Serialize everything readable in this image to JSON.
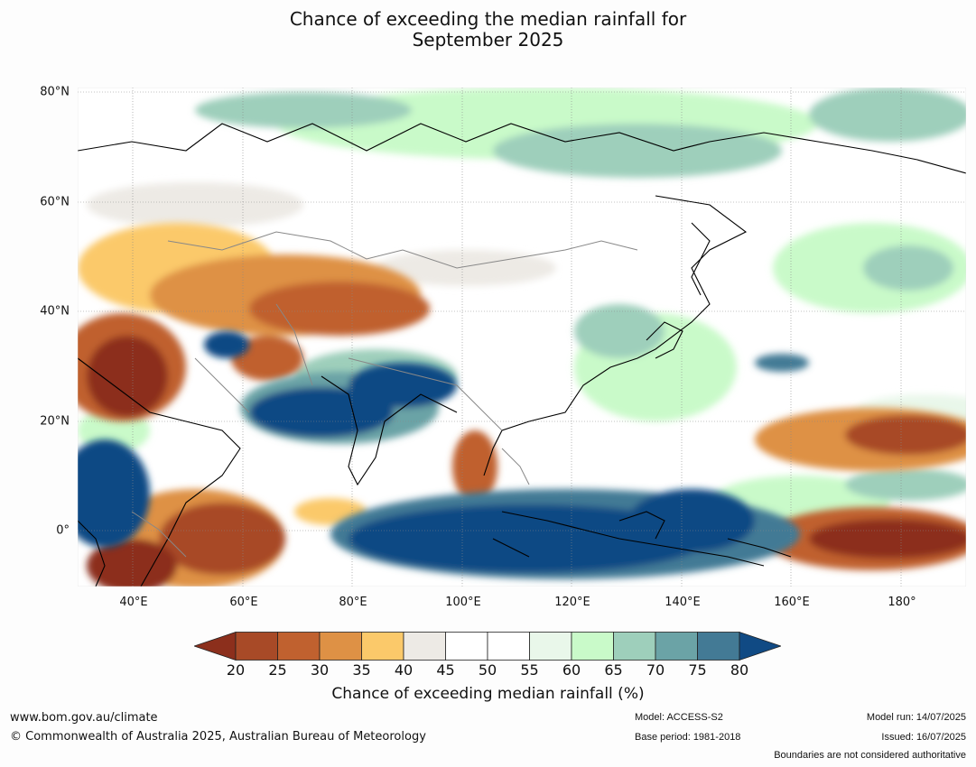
{
  "title": {
    "line1": "Chance of exceeding the median rainfall for",
    "line2": "September 2025"
  },
  "map": {
    "lat_labels": [
      "80°N",
      "60°N",
      "40°N",
      "20°N",
      "0°"
    ],
    "lon_labels": [
      "40°E",
      "60°E",
      "80°E",
      "100°E",
      "120°E",
      "140°E",
      "160°E",
      "180°"
    ],
    "lat_range": [
      -10,
      81
    ],
    "lon_range": [
      30,
      192
    ]
  },
  "colorbar": {
    "ticks": [
      "20",
      "25",
      "30",
      "35",
      "40",
      "45",
      "50",
      "55",
      "60",
      "65",
      "70",
      "75",
      "80"
    ],
    "colors": [
      "#8c2f1c",
      "#a84a27",
      "#c0612f",
      "#de9145",
      "#fbc96a",
      "#edeae5",
      "#ffffff",
      "#ffffff",
      "#e9f7ea",
      "#c9fac9",
      "#9ecfbb",
      "#6ba3a6",
      "#437a95",
      "#104a84"
    ],
    "label": "Chance of exceeding median rainfall (%)"
  },
  "footer": {
    "website": "www.bom.gov.au/climate",
    "copyright": "© Commonwealth of Australia 2025, Australian Bureau of Meteorology",
    "model": "Model: ACCESS-S2",
    "base_period": "Base period: 1981-2018",
    "model_run": "Model run: 14/07/2025",
    "issued": "Issued: 16/07/2025",
    "boundaries": "Boundaries are not considered authoritative"
  }
}
